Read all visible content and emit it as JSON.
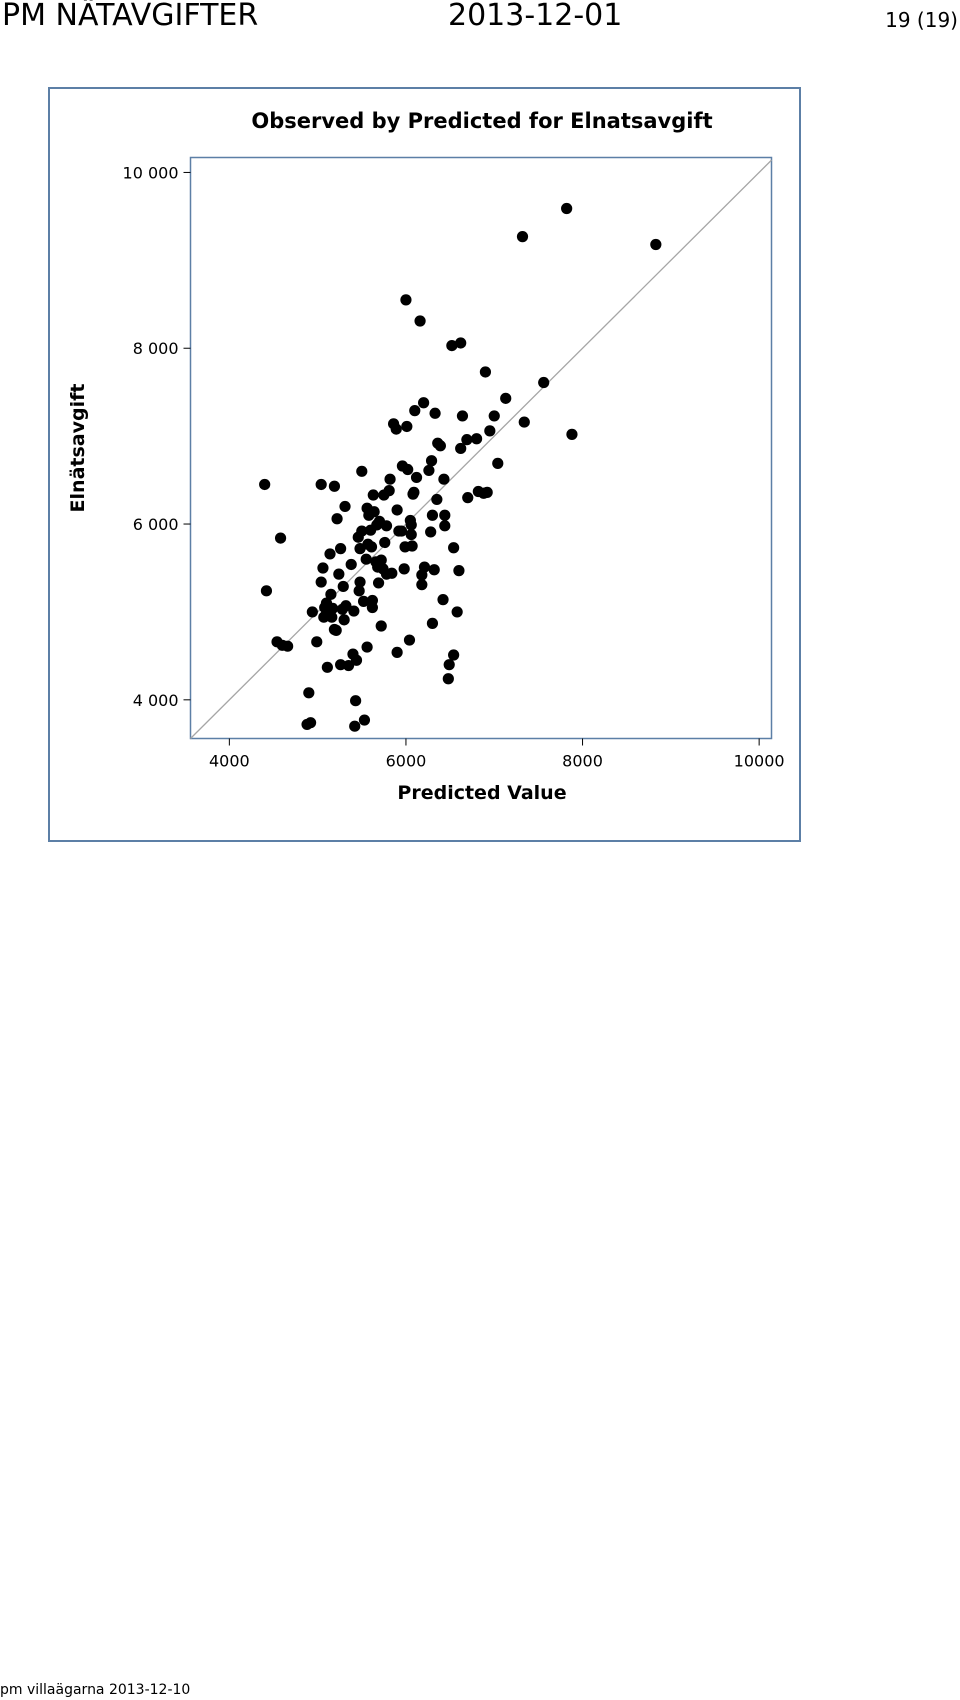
{
  "header": {
    "title": "PM NÄTAVGIFTER",
    "date": "2013-12-01",
    "page": "19 (19)"
  },
  "footer": {
    "text": "pm villaägarna 2013-12-10"
  },
  "colors": {
    "frame": "#5c7fa6",
    "points": "#000000",
    "ref_line": "#a6a6a6"
  },
  "chart_data": {
    "type": "scatter",
    "title": "Observed by Predicted for Elnatsavgift",
    "xlabel": "Predicted Value",
    "ylabel": "Elnätsavgift",
    "xlim": [
      3560,
      10140
    ],
    "ylim": [
      3560,
      10170
    ],
    "xticks": [
      4000,
      6000,
      8000,
      10000
    ],
    "xtick_labels": [
      "4000",
      "6000",
      "8000",
      "10000"
    ],
    "yticks": [
      4000,
      6000,
      8000,
      10000
    ],
    "ytick_labels": [
      "4 000",
      "6 000",
      "8 000",
      "10 000"
    ],
    "reference_line": "y = x",
    "grid": false,
    "points": [
      [
        4400,
        6450
      ],
      [
        4420,
        5240
      ],
      [
        4580,
        5840
      ],
      [
        4540,
        4660
      ],
      [
        4600,
        4620
      ],
      [
        4660,
        4610
      ],
      [
        4900,
        4080
      ],
      [
        4880,
        3720
      ],
      [
        4920,
        3740
      ],
      [
        4940,
        5000
      ],
      [
        4990,
        4660
      ],
      [
        5040,
        6450
      ],
      [
        5040,
        5340
      ],
      [
        5060,
        5500
      ],
      [
        5070,
        4940
      ],
      [
        5080,
        5050
      ],
      [
        5090,
        4960
      ],
      [
        5100,
        5100
      ],
      [
        5110,
        4370
      ],
      [
        5140,
        5660
      ],
      [
        5150,
        5200
      ],
      [
        5160,
        4940
      ],
      [
        5170,
        5040
      ],
      [
        5190,
        6430
      ],
      [
        5190,
        4800
      ],
      [
        5210,
        4790
      ],
      [
        5220,
        6060
      ],
      [
        5240,
        5430
      ],
      [
        5260,
        5720
      ],
      [
        5260,
        4400
      ],
      [
        5280,
        5030
      ],
      [
        5290,
        5290
      ],
      [
        5300,
        4910
      ],
      [
        5310,
        6200
      ],
      [
        5320,
        5070
      ],
      [
        5350,
        4390
      ],
      [
        5380,
        5540
      ],
      [
        5400,
        4520
      ],
      [
        5410,
        5010
      ],
      [
        5420,
        3700
      ],
      [
        5430,
        3990
      ],
      [
        5440,
        4450
      ],
      [
        5460,
        5850
      ],
      [
        5470,
        5240
      ],
      [
        5480,
        5340
      ],
      [
        5480,
        5720
      ],
      [
        5500,
        5920
      ],
      [
        5500,
        6600
      ],
      [
        5520,
        5120
      ],
      [
        5530,
        3770
      ],
      [
        5550,
        5600
      ],
      [
        5560,
        4600
      ],
      [
        5560,
        6180
      ],
      [
        5570,
        5770
      ],
      [
        5580,
        6100
      ],
      [
        5600,
        5930
      ],
      [
        5610,
        5740
      ],
      [
        5620,
        5050
      ],
      [
        5620,
        5130
      ],
      [
        5630,
        6330
      ],
      [
        5640,
        6140
      ],
      [
        5660,
        5570
      ],
      [
        5670,
        5990
      ],
      [
        5680,
        5510
      ],
      [
        5690,
        5330
      ],
      [
        5700,
        6030
      ],
      [
        5720,
        5590
      ],
      [
        5720,
        4840
      ],
      [
        5740,
        5490
      ],
      [
        5750,
        6330
      ],
      [
        5760,
        5790
      ],
      [
        5780,
        5980
      ],
      [
        5780,
        5430
      ],
      [
        5810,
        6380
      ],
      [
        5820,
        6510
      ],
      [
        5840,
        5440
      ],
      [
        5860,
        7140
      ],
      [
        5890,
        7080
      ],
      [
        5900,
        6160
      ],
      [
        5900,
        4540
      ],
      [
        5920,
        5920
      ],
      [
        5950,
        5920
      ],
      [
        5960,
        6660
      ],
      [
        5980,
        5490
      ],
      [
        5990,
        5740
      ],
      [
        6000,
        8550
      ],
      [
        6010,
        7110
      ],
      [
        6020,
        6620
      ],
      [
        6040,
        4680
      ],
      [
        6050,
        6040
      ],
      [
        6060,
        5990
      ],
      [
        6060,
        5880
      ],
      [
        6070,
        5750
      ],
      [
        6080,
        6340
      ],
      [
        6090,
        6360
      ],
      [
        6100,
        7290
      ],
      [
        6120,
        6530
      ],
      [
        6160,
        8310
      ],
      [
        6180,
        5310
      ],
      [
        6180,
        5420
      ],
      [
        6200,
        7380
      ],
      [
        6210,
        5510
      ],
      [
        6260,
        6610
      ],
      [
        6280,
        5910
      ],
      [
        6290,
        6720
      ],
      [
        6300,
        4870
      ],
      [
        6300,
        6100
      ],
      [
        6320,
        5480
      ],
      [
        6330,
        7260
      ],
      [
        6350,
        6280
      ],
      [
        6360,
        6920
      ],
      [
        6390,
        6890
      ],
      [
        6420,
        5140
      ],
      [
        6430,
        6510
      ],
      [
        6440,
        6100
      ],
      [
        6440,
        5980
      ],
      [
        6480,
        4240
      ],
      [
        6490,
        4400
      ],
      [
        6520,
        8030
      ],
      [
        6540,
        4510
      ],
      [
        6540,
        5730
      ],
      [
        6580,
        5000
      ],
      [
        6600,
        5470
      ],
      [
        6620,
        8060
      ],
      [
        6620,
        6860
      ],
      [
        6640,
        7230
      ],
      [
        6690,
        6960
      ],
      [
        6700,
        6300
      ],
      [
        6800,
        6970
      ],
      [
        6820,
        6370
      ],
      [
        6880,
        6350
      ],
      [
        6900,
        7730
      ],
      [
        6920,
        6360
      ],
      [
        6950,
        7060
      ],
      [
        7000,
        7230
      ],
      [
        7040,
        6690
      ],
      [
        7130,
        7430
      ],
      [
        7320,
        9270
      ],
      [
        7340,
        7160
      ],
      [
        7560,
        7610
      ],
      [
        7820,
        9590
      ],
      [
        7880,
        7020
      ],
      [
        8830,
        9180
      ]
    ]
  }
}
